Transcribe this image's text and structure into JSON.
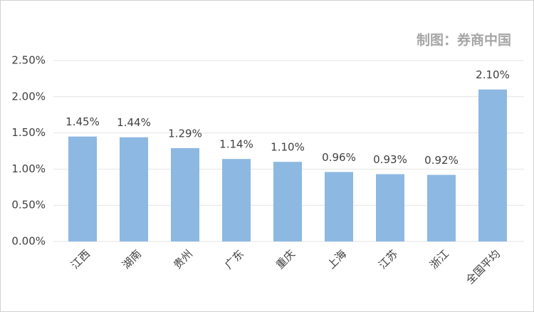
{
  "chart_data": {
    "type": "bar",
    "annotation": "制图：券商中国",
    "categories": [
      "江西",
      "湖南",
      "贵州",
      "广东",
      "重庆",
      "上海",
      "江苏",
      "浙江",
      "全国平均"
    ],
    "values": [
      1.45,
      1.44,
      1.29,
      1.14,
      1.1,
      0.96,
      0.93,
      0.92,
      2.1
    ],
    "value_labels": [
      "1.45%",
      "1.44%",
      "1.29%",
      "1.14%",
      "1.10%",
      "0.96%",
      "0.93%",
      "0.92%",
      "2.10%"
    ],
    "color": "#8db8e2",
    "ylim": [
      0,
      2.5
    ],
    "yticks": [
      {
        "value": 0,
        "label": "0.00%"
      },
      {
        "value": 0.5,
        "label": "0.50%"
      },
      {
        "value": 1,
        "label": "1.00%"
      },
      {
        "value": 1.5,
        "label": "1.50%"
      },
      {
        "value": 2,
        "label": "2.00%"
      },
      {
        "value": 2.5,
        "label": "2.50%"
      }
    ],
    "grid": true
  }
}
